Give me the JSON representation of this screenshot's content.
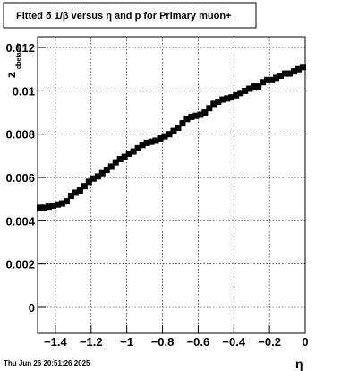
{
  "chart_data": {
    "type": "scatter",
    "title": "Fitted δ 1/β  versus η and p for Primary muon+",
    "xlabel": "η",
    "ylabel_main": "z",
    "ylabel_sub": "dbetapiv",
    "xlim": [
      -1.5,
      0.0
    ],
    "ylim": [
      -0.0012,
      0.0125
    ],
    "x_ticks": [
      -1.4,
      -1.2,
      -1.0,
      -0.8,
      -0.6,
      -0.4,
      -0.2,
      0.0
    ],
    "x_tick_labels": [
      "−1.4",
      "−1.2",
      "−1",
      "−0.8",
      "−0.6",
      "−0.4",
      "−0.2",
      "0"
    ],
    "y_ticks": [
      0.0,
      0.002,
      0.004,
      0.006,
      0.008,
      0.01,
      0.012
    ],
    "y_tick_labels": [
      "0",
      "0.002",
      "0.004",
      "0.006",
      "0.008",
      "0.01",
      "0.012"
    ],
    "grid": true,
    "footer": "Thu Jun 26 20:51:26 2025",
    "colors": {
      "series_black": "#000000",
      "series_red": "#ff0000"
    },
    "series": [
      {
        "marker": "square",
        "color": "#000000",
        "points": [
          [
            -1.4875,
            0.0046
          ],
          [
            -1.4625,
            0.0046
          ],
          [
            -1.4375,
            0.00465
          ],
          [
            -1.4125,
            0.0047
          ],
          [
            -1.3875,
            0.00475
          ],
          [
            -1.3625,
            0.0048
          ],
          [
            -1.3375,
            0.0049
          ],
          [
            -1.3125,
            0.00515
          ],
          [
            -1.2875,
            0.0053
          ],
          [
            -1.2625,
            0.0054
          ],
          [
            -1.2375,
            0.0056
          ],
          [
            -1.2125,
            0.0058
          ],
          [
            -1.1875,
            0.00595
          ],
          [
            -1.1625,
            0.00605
          ],
          [
            -1.1375,
            0.0062
          ],
          [
            -1.1125,
            0.00635
          ],
          [
            -1.0875,
            0.0065
          ],
          [
            -1.0625,
            0.0067
          ],
          [
            -1.0375,
            0.00685
          ],
          [
            -1.0125,
            0.00695
          ],
          [
            -0.9875,
            0.0071
          ],
          [
            -0.9625,
            0.0072
          ],
          [
            -0.9375,
            0.00735
          ],
          [
            -0.9125,
            0.0075
          ],
          [
            -0.8875,
            0.0076
          ],
          [
            -0.8625,
            0.00765
          ],
          [
            -0.8375,
            0.0077
          ],
          [
            -0.8125,
            0.0078
          ],
          [
            -0.7875,
            0.0079
          ],
          [
            -0.7625,
            0.008
          ],
          [
            -0.7375,
            0.00815
          ],
          [
            -0.7125,
            0.0083
          ],
          [
            -0.6875,
            0.0085
          ],
          [
            -0.6625,
            0.0087
          ],
          [
            -0.6375,
            0.0088
          ],
          [
            -0.6125,
            0.00885
          ],
          [
            -0.5875,
            0.0089
          ],
          [
            -0.5625,
            0.009
          ],
          [
            -0.5375,
            0.0092
          ],
          [
            -0.5125,
            0.0094
          ],
          [
            -0.4875,
            0.0095
          ],
          [
            -0.4625,
            0.0096
          ],
          [
            -0.4375,
            0.00965
          ],
          [
            -0.4125,
            0.0097
          ],
          [
            -0.3875,
            0.0098
          ],
          [
            -0.3625,
            0.0099
          ],
          [
            -0.3375,
            0.01
          ],
          [
            -0.3125,
            0.0101
          ],
          [
            -0.2875,
            0.0102
          ],
          [
            -0.2625,
            0.0102
          ],
          [
            -0.2375,
            0.0104
          ],
          [
            -0.2125,
            0.0105
          ],
          [
            -0.1875,
            0.0105
          ],
          [
            -0.1625,
            0.0106
          ],
          [
            -0.1375,
            0.0107
          ],
          [
            -0.1125,
            0.0108
          ],
          [
            -0.0875,
            0.0108
          ],
          [
            -0.0625,
            0.0109
          ],
          [
            -0.0375,
            0.011
          ],
          [
            -0.0125,
            0.0111
          ]
        ]
      }
    ]
  }
}
